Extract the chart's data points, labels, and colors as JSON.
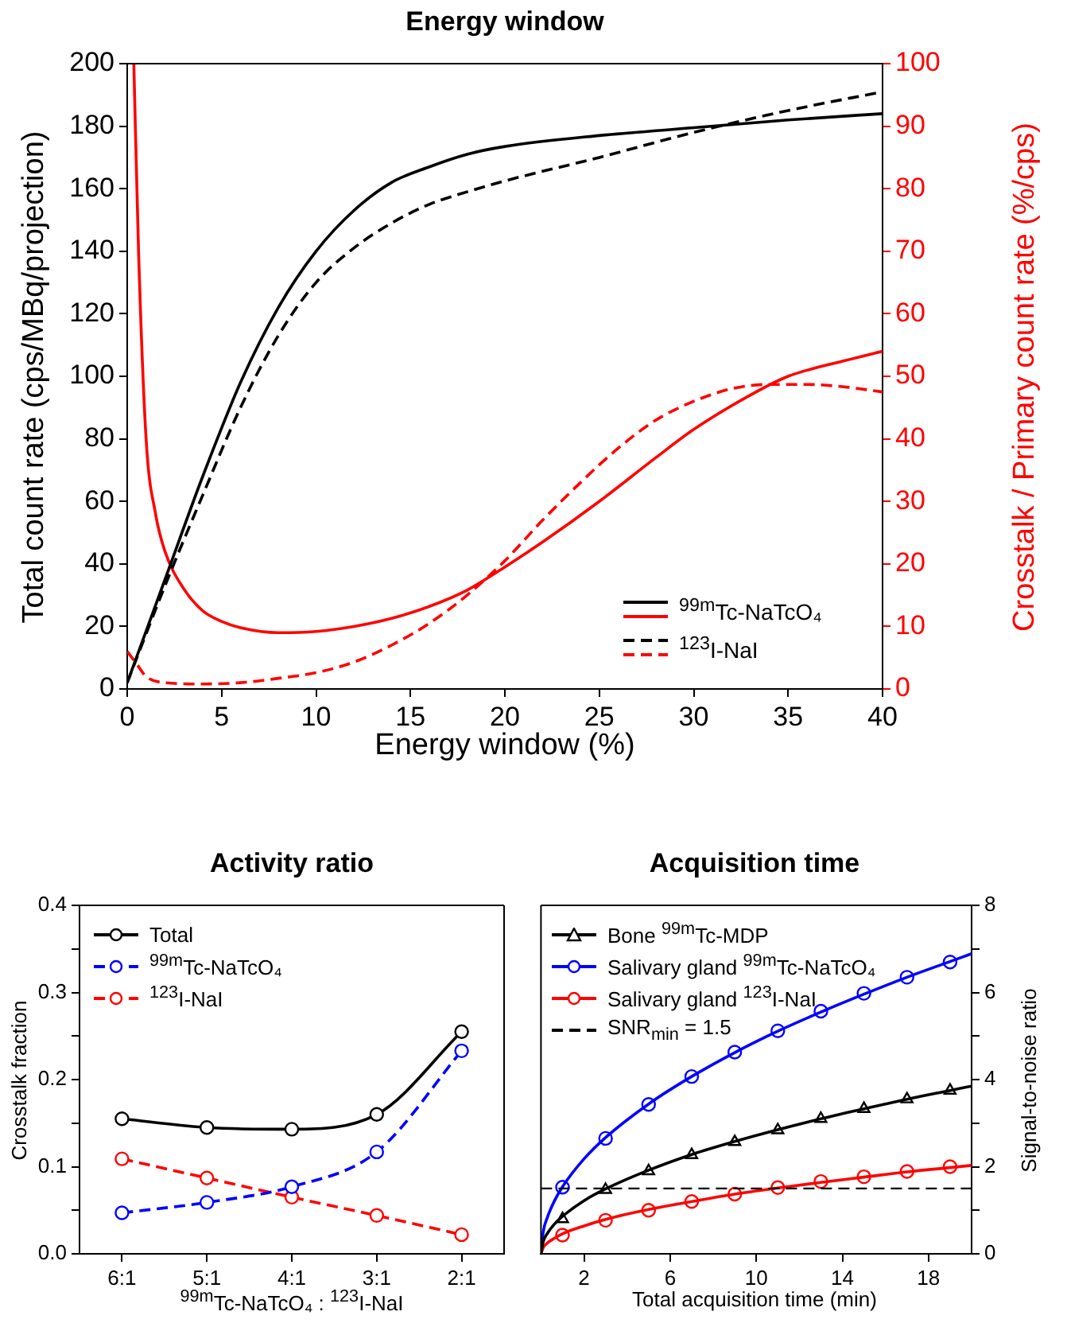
{
  "chart_data": [
    {
      "type": "line",
      "title": "Energy window",
      "xlabel": "Energy window (%)",
      "ylabel": "Total count rate (cps/MBq/projection)",
      "y2label": "Crosstalk / Primary count rate (%/cps)",
      "xlim": [
        0,
        40
      ],
      "xticks": [
        0,
        5,
        10,
        15,
        20,
        25,
        30,
        35,
        40
      ],
      "ylim": [
        0,
        200
      ],
      "yticks": [
        0,
        20,
        40,
        60,
        80,
        100,
        120,
        140,
        160,
        180,
        200
      ],
      "y2lim": [
        0,
        100
      ],
      "y2ticks": [
        0,
        10,
        20,
        30,
        40,
        50,
        60,
        70,
        80,
        90,
        100
      ],
      "legend": "bottom right",
      "marker": "none",
      "series": [
        {
          "name": "$^{99m}$Tc-NaTcO₄",
          "color": "#000000",
          "line_style": "solid",
          "x": [
            0,
            2,
            4,
            6,
            8,
            10,
            12,
            14,
            16,
            18,
            20,
            25,
            30,
            35,
            40
          ],
          "values": [
            2,
            35,
            68,
            98,
            122,
            140,
            153,
            162,
            167,
            171,
            173.5,
            177,
            179.5,
            182,
            184
          ]
        },
        {
          "name": "$^{123}$I-NaI",
          "color": "#000000",
          "line_style": "dashed",
          "x": [
            0,
            2,
            4,
            6,
            8,
            10,
            12,
            14,
            16,
            18,
            20,
            25,
            30,
            35,
            40
          ],
          "values": [
            2,
            33,
            62,
            90,
            113,
            130,
            141,
            149,
            155,
            159,
            162.5,
            170,
            178,
            185,
            191
          ]
        },
        {
          "color": "#ff0000",
          "line_style": "solid",
          "axis": "y2",
          "x": [
            0.35,
            0.6,
            1,
            1.5,
            2,
            3,
            4,
            5,
            6,
            8,
            10,
            12,
            14,
            16,
            18,
            20,
            22,
            25,
            28,
            30,
            33,
            35,
            38,
            40
          ],
          "values": [
            100,
            70,
            40,
            28,
            22,
            16,
            12.5,
            10.8,
            9.8,
            9,
            9.2,
            10,
            11.3,
            13.2,
            15.8,
            19.5,
            23.5,
            30,
            37,
            41.5,
            47,
            50,
            52.5,
            54
          ]
        },
        {
          "color": "#ff0000",
          "line_style": "dashed",
          "axis": "y2",
          "x": [
            0,
            0.5,
            1,
            2,
            4,
            6,
            8,
            10,
            12,
            14,
            16,
            18,
            20,
            22,
            24,
            26,
            28,
            30,
            32,
            34,
            36,
            38,
            40
          ],
          "values": [
            6,
            4,
            2,
            1,
            0.8,
            1,
            1.7,
            2.6,
            4.3,
            7,
            10.5,
            15,
            20.5,
            27,
            33,
            38.5,
            43,
            46,
            48,
            48.7,
            48.7,
            48.3,
            47.5
          ]
        }
      ]
    },
    {
      "type": "line",
      "title": "Activity ratio",
      "xlabel": "$^{99m}$Tc-NaTcO₄ : $^{123}$I-NaI",
      "ylabel": "Crosstalk fraction",
      "categories": [
        "6:1",
        "5:1",
        "4:1",
        "3:1",
        "2:1"
      ],
      "ylim": [
        0,
        0.4
      ],
      "yticks": [
        {
          "value": 0,
          "label": "0.0"
        },
        {
          "value": 0.05,
          "label": null
        },
        0.1,
        {
          "value": 0.15,
          "label": null
        },
        0.2,
        {
          "value": 0.25,
          "label": null
        },
        0.3,
        {
          "value": 0.35,
          "label": null
        },
        0.4
      ],
      "legend": "top left",
      "marker": "circle",
      "series": [
        {
          "name": "Total",
          "color": "#000000",
          "line_style": "solid",
          "values": [
            0.155,
            0.145,
            0.143,
            0.16,
            0.255
          ]
        },
        {
          "name": "$^{99m}$Tc-NaTcO₄",
          "color": "#0000ff",
          "line_style": "dashed",
          "values": [
            0.047,
            0.059,
            0.077,
            0.117,
            0.233
          ]
        },
        {
          "name": "$^{123}$I-NaI",
          "color": "#ff0000",
          "line_style": "dashed",
          "values": [
            0.109,
            0.087,
            0.065,
            0.044,
            0.022
          ]
        }
      ]
    },
    {
      "type": "line",
      "title": "Acquisition time",
      "xlabel": "Total acquisition time (min)",
      "ylabel": "Signal-to-noise ratio",
      "xlim": [
        0,
        20
      ],
      "xticks": [
        2,
        6,
        10,
        14,
        18
      ],
      "ylim": [
        0,
        8
      ],
      "yticks": [
        0,
        {
          "value": 1,
          "label": null
        },
        2,
        {
          "value": 3,
          "label": null
        },
        4,
        {
          "value": 5,
          "label": null
        },
        6,
        {
          "value": 7,
          "label": null
        },
        8
      ],
      "legend": "top left",
      "ref_lines": [
        {
          "axis": "y",
          "value": 1.5,
          "label": "SNR$_{min}$ = 1.5",
          "color": "#000000",
          "line_style": "dashed"
        }
      ],
      "series": [
        {
          "color": "#000000",
          "line_style": "solid",
          "marker": "none",
          "x": [
            0,
            0.1,
            0.3,
            0.6,
            1,
            2,
            3,
            5,
            7,
            9,
            11,
            13,
            15,
            17,
            19,
            20
          ],
          "values": [
            0,
            0.27,
            0.47,
            0.67,
            0.86,
            1.22,
            1.49,
            1.92,
            2.28,
            2.58,
            2.85,
            3.1,
            3.33,
            3.55,
            3.75,
            3.85
          ]
        },
        {
          "color": "#0000ff",
          "line_style": "solid",
          "marker": "none",
          "x": [
            0,
            0.1,
            0.3,
            0.6,
            1,
            2,
            3,
            5,
            7,
            9,
            11,
            13,
            15,
            17,
            19,
            20
          ],
          "values": [
            0,
            0.49,
            0.84,
            1.19,
            1.54,
            2.18,
            2.67,
            3.44,
            4.07,
            4.62,
            5.11,
            5.55,
            5.96,
            6.35,
            6.71,
            6.89
          ]
        },
        {
          "color": "#ff0000",
          "line_style": "solid",
          "marker": "none",
          "x": [
            0,
            0.1,
            0.3,
            0.6,
            1,
            2,
            3,
            5,
            7,
            9,
            11,
            13,
            15,
            17,
            19,
            20
          ],
          "values": [
            0,
            0.14,
            0.25,
            0.35,
            0.46,
            0.64,
            0.79,
            1.02,
            1.2,
            1.37,
            1.51,
            1.64,
            1.76,
            1.88,
            1.98,
            2.03
          ]
        },
        {
          "type": "scatter",
          "name": "Bone $^{99m}$Tc-MDP",
          "color": "#000000",
          "marker": "triangle",
          "x": [
            1,
            3,
            5,
            7,
            9,
            11,
            13,
            15,
            17,
            19
          ],
          "values": [
            0.8,
            1.47,
            1.9,
            2.27,
            2.57,
            2.84,
            3.1,
            3.33,
            3.55,
            3.75
          ]
        },
        {
          "type": "scatter",
          "name": "Salivary gland $^{99m}$Tc-NaTcO₄",
          "color": "#0000ff",
          "marker": "circle",
          "x": [
            1,
            3,
            5,
            7,
            9,
            11,
            13,
            15,
            17,
            19
          ],
          "values": [
            1.53,
            2.65,
            3.43,
            4.07,
            4.63,
            5.12,
            5.57,
            5.98,
            6.35,
            6.7
          ]
        },
        {
          "type": "scatter",
          "name": "Salivary gland $^{123}$I-NaI",
          "color": "#ff0000",
          "marker": "circle",
          "x": [
            1,
            3,
            5,
            7,
            9,
            11,
            13,
            15,
            17,
            19
          ],
          "values": [
            0.43,
            0.77,
            1.0,
            1.2,
            1.37,
            1.52,
            1.66,
            1.77,
            1.89,
            2.0
          ]
        }
      ]
    }
  ]
}
